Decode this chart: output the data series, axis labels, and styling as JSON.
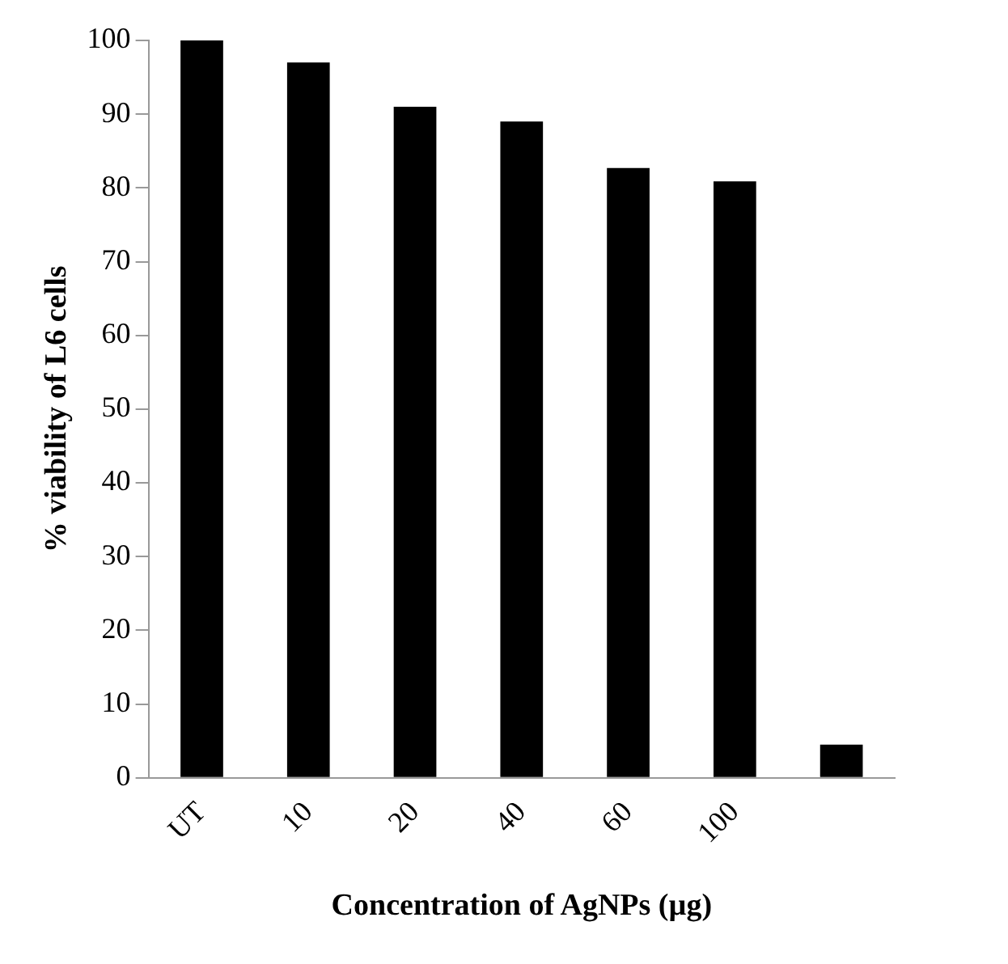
{
  "chart_data": {
    "type": "bar",
    "xlabel": "Concentration of AgNPs (µg)",
    "ylabel": "% viability of L6 cells",
    "categories": [
      "UT",
      "10",
      "20",
      "40",
      "60",
      "100",
      null
    ],
    "values": [
      100,
      97,
      91,
      89,
      82.7,
      80.9,
      4.5
    ],
    "color": "#000000",
    "ylim": [
      0,
      100
    ],
    "yticks": [
      0,
      10,
      20,
      30,
      40,
      50,
      60,
      70,
      80,
      90,
      100
    ],
    "grid": false,
    "legend": false
  }
}
